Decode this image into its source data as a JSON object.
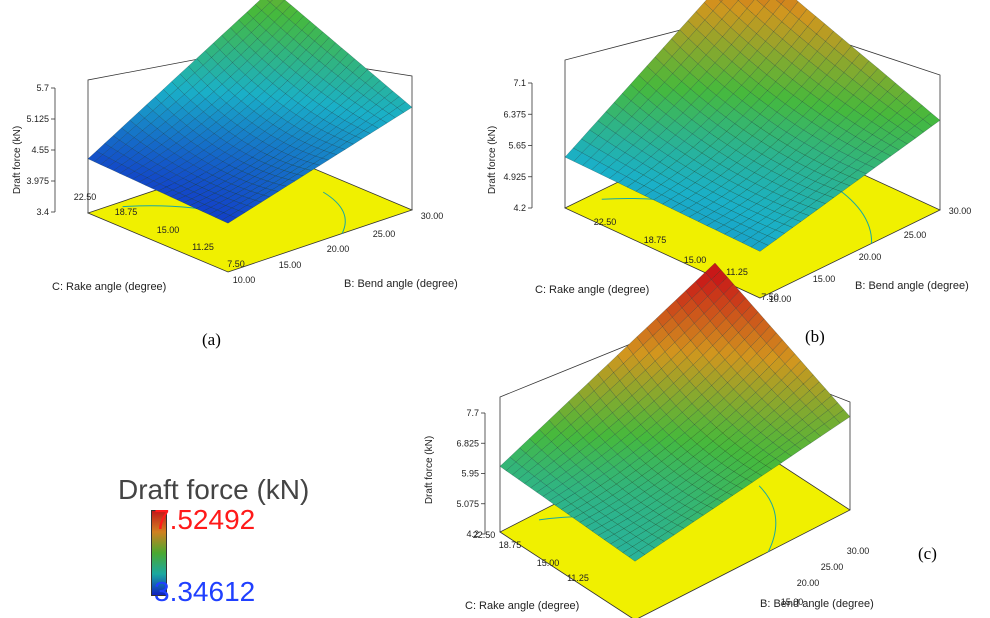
{
  "chart_data": [
    {
      "panel": "(a)",
      "type": "surface3d",
      "zlabel": "Draft force (kN)",
      "z_ticks": [
        "5.7",
        "5.125",
        "4.55",
        "3.975",
        "3.4"
      ],
      "zlim": [
        3.4,
        5.7
      ],
      "x_axis": {
        "label": "B: Bend angle (degree)",
        "ticks": [
          "10.00",
          "15.00",
          "20.00",
          "25.00",
          "30.00"
        ],
        "range": [
          10,
          30
        ]
      },
      "y_axis": {
        "label": "C: Rake angle (degree)",
        "ticks": [
          "7.50",
          "11.25",
          "15.00",
          "18.75",
          "22.50"
        ],
        "range": [
          7.5,
          22.5
        ]
      },
      "corners": {
        "b10_c7_5": 3.6,
        "b30_c7_5": 4.6,
        "b10_c22_5": 3.7,
        "b30_c22_5": 5.7
      },
      "floor_color": "#f0f000"
    },
    {
      "panel": "(b)",
      "type": "surface3d",
      "zlabel": "Draft force (kN)",
      "z_ticks": [
        "7.1",
        "6.375",
        "5.65",
        "4.925",
        "4.2"
      ],
      "zlim": [
        4.2,
        7.1
      ],
      "x_axis": {
        "label": "B: Bend angle (degree)",
        "ticks": [
          "10.00",
          "15.00",
          "20.00",
          "25.00",
          "30.00"
        ],
        "range": [
          10,
          30
        ]
      },
      "y_axis": {
        "label": "C: Rake angle (degree)",
        "ticks": [
          "7.50",
          "11.25",
          "15.00",
          "18.75",
          "22.50"
        ],
        "range": [
          7.5,
          22.5
        ]
      },
      "corners": {
        "b10_c7_5": 4.4,
        "b30_c7_5": 5.4,
        "b10_c22_5": 4.5,
        "b30_c22_5": 7.1
      },
      "floor_color": "#f0f000"
    },
    {
      "panel": "(c)",
      "type": "surface3d",
      "zlabel": "Draft force (kN)",
      "z_ticks": [
        "7.7",
        "6.825",
        "5.95",
        "5.075",
        "4.2"
      ],
      "zlim": [
        4.2,
        7.7
      ],
      "x_axis": {
        "label": "B: Bend angle (degree)",
        "ticks": [
          "15.00",
          "20.00",
          "25.00",
          "30.00"
        ],
        "range": [
          10,
          30
        ]
      },
      "y_axis": {
        "label": "C: Rake angle (degree)",
        "ticks": [
          "11.25",
          "15.00",
          "18.75",
          "22.50"
        ],
        "range": [
          7.5,
          22.5
        ]
      },
      "corners": {
        "b10_c7_5": 4.8,
        "b30_c7_5": 5.8,
        "b10_c22_5": 5.0,
        "b30_c22_5": 7.7
      },
      "floor_color": "#f0f000"
    }
  ],
  "captions": {
    "a": "(a)",
    "b": "(b)",
    "c": "(c)"
  },
  "legend": {
    "title": "Draft force (kN)",
    "max": "7.52492",
    "min": "3.34612",
    "max_color": "#ff1a1a",
    "min_color": "#2040ff"
  }
}
